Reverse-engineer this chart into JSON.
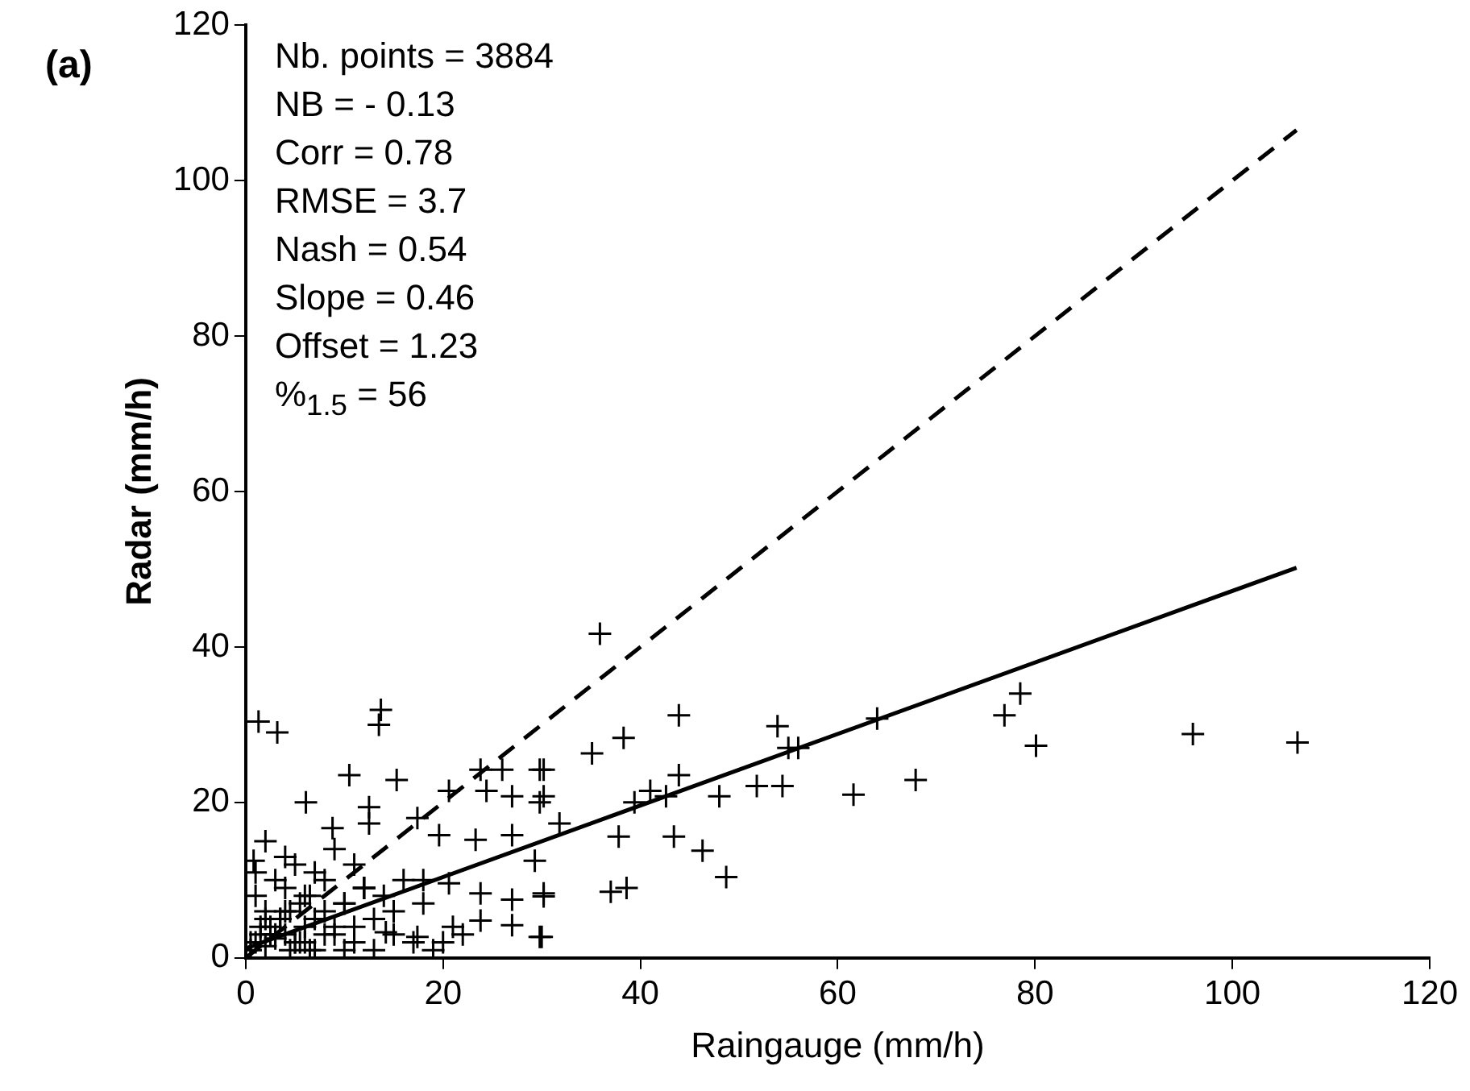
{
  "chart_data": {
    "type": "scatter",
    "xlabel": "Raingauge (mm/h)",
    "ylabel": "Radar (mm/h)",
    "xlim": [
      0,
      120
    ],
    "xticks": [
      0,
      20,
      40,
      60,
      80,
      100,
      120
    ],
    "ylim": [
      0,
      120
    ],
    "yticks": [
      0,
      20,
      40,
      60,
      80,
      100,
      120
    ],
    "grid": false,
    "legend": false,
    "annotations": [
      "(a)",
      "Nb. points = 3884",
      "NB = - 0.13",
      "Corr = 0.78",
      "RMSE = 3.7",
      "Nash = 0.54",
      "Slope = 0.46",
      "Offset = 1.23",
      "%$_{1.5}$ = 56"
    ],
    "series": [
      {
        "marker": "cross",
        "color": "#000000",
        "x": [
          35.9,
          43.9,
          38.3,
          35.1,
          30.2,
          30.2,
          31.8,
          39.4,
          41,
          42.6,
          43.9,
          48,
          51.8,
          54.4,
          53.9,
          55,
          56,
          61.6,
          64,
          67.9,
          37.8,
          43.4,
          46.3,
          48.7,
          37,
          38.6,
          30.2,
          30,
          76.9,
          78.5,
          80.1,
          96,
          106.6,
          13.7,
          3.2,
          10.5,
          15.3,
          6.1,
          12.5,
          12.5,
          8.8,
          17.4,
          20.6,
          23.8,
          26,
          29.8,
          24.4,
          27,
          29.8,
          19.6,
          23.3,
          27,
          29.3,
          23.8,
          27,
          30.2,
          23.8,
          27,
          29.8,
          20,
          17.4,
          14.2,
          20.6,
          0.8,
          1.3,
          13.5,
          0.5,
          1,
          1.5,
          2,
          2.5,
          3,
          3.5,
          4,
          4.5,
          5,
          5.5,
          6,
          6.5,
          7,
          8,
          9,
          10,
          11,
          12,
          13,
          14,
          15,
          16,
          18,
          1,
          2,
          3,
          4,
          5,
          6,
          7,
          8,
          9,
          10,
          11,
          12,
          2,
          4,
          6,
          8,
          10,
          0.5,
          1.5,
          2.5,
          3.5,
          4.5,
          5.5,
          6.5,
          3,
          5,
          7,
          9,
          11,
          13,
          15,
          17,
          19,
          21,
          22,
          2,
          4,
          1,
          18,
          12
        ],
        "values": [
          41.7,
          31.2,
          28.3,
          26.3,
          24.2,
          20.8,
          17.3,
          20,
          21.5,
          20.8,
          23.5,
          20.8,
          22.1,
          22.1,
          29.8,
          27,
          27,
          21,
          30.8,
          22.9,
          15.6,
          15.6,
          13.8,
          10.4,
          8.5,
          9,
          7.9,
          2.7,
          31.2,
          34,
          27.3,
          28.8,
          27.7,
          31.9,
          29,
          23.5,
          22.9,
          20,
          19.4,
          17.3,
          16.7,
          18,
          21.5,
          24.2,
          24.2,
          24.2,
          21.5,
          20.8,
          20,
          15.8,
          15.2,
          15.8,
          12.5,
          8.3,
          7.5,
          8.3,
          4.8,
          4.2,
          2.7,
          2,
          2.7,
          3.3,
          9.6,
          12.5,
          30.4,
          30,
          1,
          2,
          3,
          1.5,
          4,
          2.5,
          5,
          3,
          6,
          2,
          7,
          4,
          8,
          5,
          6,
          3,
          7,
          4,
          9,
          5,
          8,
          6,
          10,
          7,
          8,
          6,
          10,
          9,
          12,
          8,
          11,
          10,
          14,
          7,
          12,
          9,
          15,
          13,
          2,
          3,
          1,
          2,
          4,
          3,
          5,
          1,
          2,
          1,
          3,
          2,
          1,
          4,
          2,
          1,
          3,
          2,
          1,
          4,
          3,
          5,
          6,
          11,
          10,
          9
        ]
      },
      {
        "type": "line",
        "line_style": "dashed",
        "color": "#000000",
        "x": [
          0,
          106.5
        ],
        "values": [
          0,
          106.5
        ]
      },
      {
        "type": "line",
        "line_style": "solid",
        "color": "#000000",
        "x": [
          0,
          106.5
        ],
        "values": [
          1.2,
          50.2
        ]
      }
    ]
  }
}
